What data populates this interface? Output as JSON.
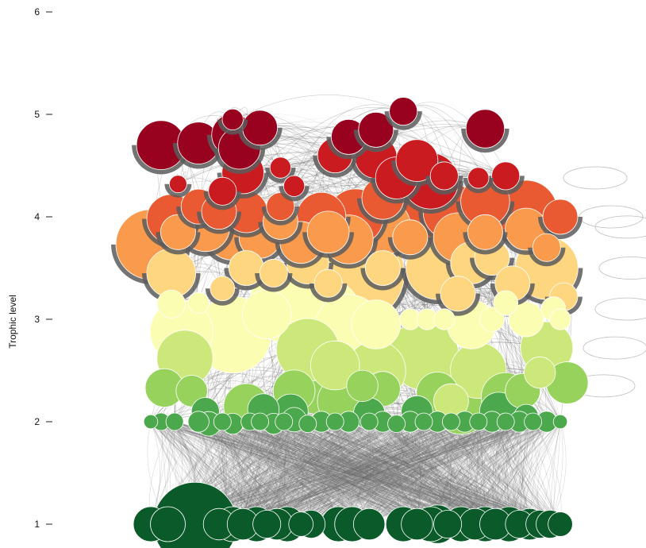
{
  "chart_data": {
    "type": "scatter",
    "title": "",
    "xlabel": "",
    "ylabel": "Trophic level",
    "ylim": [
      1,
      6
    ],
    "yticks": [
      1,
      2,
      3,
      4,
      5,
      6
    ],
    "grid": false,
    "legend": "none",
    "node_stroke": "#ffffff",
    "edge_color": "#6b6b6b",
    "palette": {
      "tl_1": "#0b5a2a",
      "tl_2_0": "#4ca84c",
      "tl_2_4": "#97d35c",
      "tl_2_7": "#cde87a",
      "tl_3_0": "#fbfdb2",
      "tl_3_5": "#fdd67f",
      "tl_3_8": "#f99a4c",
      "tl_4_0": "#ea5a32",
      "tl_4_3": "#ca1c20",
      "tl_4_7": "#98021f"
    },
    "series": [
      {
        "values": [
          {
            "x": 0.06,
            "y": 1.0,
            "s": 10
          },
          {
            "x": 0.11,
            "y": 1.0,
            "s": 10
          },
          {
            "x": 0.19,
            "y": 1.0,
            "s": 24
          },
          {
            "x": 0.26,
            "y": 1.0,
            "s": 9
          },
          {
            "x": 0.3,
            "y": 1.0,
            "s": 10
          },
          {
            "x": 0.33,
            "y": 1.0,
            "s": 9
          },
          {
            "x": 0.37,
            "y": 1.0,
            "s": 10
          },
          {
            "x": 0.4,
            "y": 1.0,
            "s": 8
          },
          {
            "x": 0.43,
            "y": 1.0,
            "s": 9
          },
          {
            "x": 0.46,
            "y": 1.0,
            "s": 10
          },
          {
            "x": 0.5,
            "y": 1.0,
            "s": 7
          },
          {
            "x": 0.53,
            "y": 1.0,
            "s": 8
          },
          {
            "x": 0.61,
            "y": 1.0,
            "s": 10
          },
          {
            "x": 0.65,
            "y": 1.0,
            "s": 10
          },
          {
            "x": 0.7,
            "y": 1.0,
            "s": 9
          },
          {
            "x": 0.8,
            "y": 1.0,
            "s": 10
          },
          {
            "x": 0.84,
            "y": 1.0,
            "s": 9
          },
          {
            "x": 0.88,
            "y": 1.0,
            "s": 10
          },
          {
            "x": 0.9,
            "y": 1.0,
            "s": 11
          },
          {
            "x": 0.93,
            "y": 1.0,
            "s": 8
          },
          {
            "x": 0.97,
            "y": 1.0,
            "s": 10
          },
          {
            "x": 1.01,
            "y": 1.0,
            "s": 9
          },
          {
            "x": 1.04,
            "y": 1.0,
            "s": 10
          },
          {
            "x": 1.07,
            "y": 1.0,
            "s": 9
          },
          {
            "x": 1.11,
            "y": 1.0,
            "s": 10
          },
          {
            "x": 1.14,
            "y": 1.0,
            "s": 8
          },
          {
            "x": 1.17,
            "y": 1.0,
            "s": 9
          },
          {
            "x": 1.2,
            "y": 1.0,
            "s": 8
          },
          {
            "x": 1.23,
            "y": 1.0,
            "s": 8
          },
          {
            "x": 1.26,
            "y": 1.0,
            "s": 7
          }
        ]
      },
      {
        "values": [
          {
            "x": 0.06,
            "y": 2.0,
            "s": 4
          },
          {
            "x": 0.09,
            "y": 2.0,
            "s": 5
          },
          {
            "x": 0.13,
            "y": 2.0,
            "s": 5
          },
          {
            "x": 0.2,
            "y": 2.0,
            "s": 6
          },
          {
            "x": 0.23,
            "y": 1.98,
            "s": 7
          },
          {
            "x": 0.27,
            "y": 2.0,
            "s": 5
          },
          {
            "x": 0.3,
            "y": 1.98,
            "s": 6
          },
          {
            "x": 0.35,
            "y": 2.0,
            "s": 5
          },
          {
            "x": 0.38,
            "y": 2.0,
            "s": 5
          },
          {
            "x": 0.42,
            "y": 1.98,
            "s": 6
          },
          {
            "x": 0.45,
            "y": 2.0,
            "s": 5
          },
          {
            "x": 0.48,
            "y": 2.02,
            "s": 7
          },
          {
            "x": 0.52,
            "y": 1.98,
            "s": 5
          },
          {
            "x": 0.56,
            "y": 2.0,
            "s": 6
          },
          {
            "x": 0.6,
            "y": 2.0,
            "s": 5
          },
          {
            "x": 0.64,
            "y": 2.0,
            "s": 6
          },
          {
            "x": 0.7,
            "y": 2.0,
            "s": 5
          },
          {
            "x": 0.74,
            "y": 2.0,
            "s": 6
          },
          {
            "x": 0.78,
            "y": 1.98,
            "s": 5
          },
          {
            "x": 0.82,
            "y": 2.0,
            "s": 6
          },
          {
            "x": 0.86,
            "y": 2.0,
            "s": 5
          },
          {
            "x": 0.9,
            "y": 2.0,
            "s": 6
          },
          {
            "x": 0.94,
            "y": 2.0,
            "s": 5
          },
          {
            "x": 0.98,
            "y": 2.0,
            "s": 6
          },
          {
            "x": 1.02,
            "y": 2.0,
            "s": 5
          },
          {
            "x": 1.06,
            "y": 2.0,
            "s": 6
          },
          {
            "x": 1.1,
            "y": 2.0,
            "s": 5
          },
          {
            "x": 1.14,
            "y": 2.0,
            "s": 6
          },
          {
            "x": 1.18,
            "y": 2.0,
            "s": 5
          },
          {
            "x": 1.22,
            "y": 2.0,
            "s": 6
          },
          {
            "x": 1.26,
            "y": 2.0,
            "s": 4
          },
          {
            "x": 0.22,
            "y": 2.1,
            "s": 8
          },
          {
            "x": 0.39,
            "y": 2.12,
            "s": 9
          },
          {
            "x": 0.47,
            "y": 2.1,
            "s": 10
          },
          {
            "x": 0.7,
            "y": 2.08,
            "s": 9
          },
          {
            "x": 0.84,
            "y": 2.1,
            "s": 9
          },
          {
            "x": 1.08,
            "y": 2.1,
            "s": 11
          },
          {
            "x": 1.16,
            "y": 2.05,
            "s": 7
          }
        ]
      },
      {
        "values": [
          {
            "x": 0.1,
            "y": 2.33,
            "s": 11
          },
          {
            "x": 0.18,
            "y": 2.3,
            "s": 9
          },
          {
            "x": 0.34,
            "y": 2.15,
            "s": 13
          },
          {
            "x": 0.48,
            "y": 2.3,
            "s": 12
          },
          {
            "x": 0.55,
            "y": 2.38,
            "s": 18
          },
          {
            "x": 0.62,
            "y": 2.2,
            "s": 14
          },
          {
            "x": 0.68,
            "y": 2.35,
            "s": 9
          },
          {
            "x": 0.74,
            "y": 2.32,
            "s": 10
          },
          {
            "x": 0.9,
            "y": 2.28,
            "s": 12
          },
          {
            "x": 0.97,
            "y": 2.15,
            "s": 16
          },
          {
            "x": 1.1,
            "y": 2.24,
            "s": 14
          },
          {
            "x": 1.15,
            "y": 2.3,
            "s": 10
          },
          {
            "x": 1.28,
            "y": 2.38,
            "s": 12
          }
        ]
      },
      {
        "values": [
          {
            "x": 0.16,
            "y": 2.62,
            "s": 16
          },
          {
            "x": 0.52,
            "y": 2.7,
            "s": 18
          },
          {
            "x": 0.6,
            "y": 2.55,
            "s": 14
          },
          {
            "x": 0.72,
            "y": 2.5,
            "s": 17
          },
          {
            "x": 0.86,
            "y": 2.65,
            "s": 20
          },
          {
            "x": 0.94,
            "y": 2.2,
            "s": 10
          },
          {
            "x": 1.02,
            "y": 2.5,
            "s": 16
          },
          {
            "x": 1.22,
            "y": 2.72,
            "s": 15
          },
          {
            "x": 1.2,
            "y": 2.48,
            "s": 9
          }
        ]
      },
      {
        "values": [
          {
            "x": 0.12,
            "y": 3.15,
            "s": 8
          },
          {
            "x": 0.2,
            "y": 3.16,
            "s": 6
          },
          {
            "x": 0.15,
            "y": 2.88,
            "s": 18
          },
          {
            "x": 0.3,
            "y": 2.85,
            "s": 22
          },
          {
            "x": 0.4,
            "y": 3.05,
            "s": 14
          },
          {
            "x": 0.46,
            "y": 3.14,
            "s": 22
          },
          {
            "x": 0.56,
            "y": 3.0,
            "s": 24
          },
          {
            "x": 0.64,
            "y": 2.9,
            "s": 20
          },
          {
            "x": 0.72,
            "y": 2.95,
            "s": 14
          },
          {
            "x": 0.82,
            "y": 3.0,
            "s": 6
          },
          {
            "x": 0.87,
            "y": 3.0,
            "s": 6
          },
          {
            "x": 0.92,
            "y": 3.0,
            "s": 6
          },
          {
            "x": 1.0,
            "y": 2.95,
            "s": 14
          },
          {
            "x": 1.06,
            "y": 3.0,
            "s": 7
          },
          {
            "x": 1.16,
            "y": 3.0,
            "s": 10
          },
          {
            "x": 1.26,
            "y": 3.0,
            "s": 6
          },
          {
            "x": 1.24,
            "y": 3.1,
            "s": 7
          },
          {
            "x": 1.1,
            "y": 3.16,
            "s": 7
          }
        ]
      },
      {
        "values": [
          {
            "x": 0.12,
            "y": 3.45,
            "s": 14
          },
          {
            "x": 0.27,
            "y": 3.3,
            "s": 7
          },
          {
            "x": 0.34,
            "y": 3.5,
            "s": 10
          },
          {
            "x": 0.42,
            "y": 3.45,
            "s": 8
          },
          {
            "x": 0.52,
            "y": 3.55,
            "s": 12
          },
          {
            "x": 0.58,
            "y": 3.35,
            "s": 8
          },
          {
            "x": 0.66,
            "y": 3.45,
            "s": 28
          },
          {
            "x": 0.74,
            "y": 3.5,
            "s": 10
          },
          {
            "x": 0.9,
            "y": 3.5,
            "s": 18
          },
          {
            "x": 0.96,
            "y": 3.25,
            "s": 10
          },
          {
            "x": 1.0,
            "y": 3.55,
            "s": 12
          },
          {
            "x": 1.06,
            "y": 3.6,
            "s": 10
          },
          {
            "x": 1.12,
            "y": 3.35,
            "s": 10
          },
          {
            "x": 1.22,
            "y": 3.5,
            "s": 18
          },
          {
            "x": 1.27,
            "y": 3.22,
            "s": 8
          }
        ]
      },
      {
        "values": [
          {
            "x": 0.06,
            "y": 3.73,
            "s": 20
          },
          {
            "x": 0.14,
            "y": 3.85,
            "s": 10
          },
          {
            "x": 0.22,
            "y": 3.9,
            "s": 14
          },
          {
            "x": 0.3,
            "y": 3.85,
            "s": 16
          },
          {
            "x": 0.38,
            "y": 3.8,
            "s": 12
          },
          {
            "x": 0.44,
            "y": 3.95,
            "s": 10
          },
          {
            "x": 0.5,
            "y": 3.75,
            "s": 12
          },
          {
            "x": 0.58,
            "y": 3.85,
            "s": 12
          },
          {
            "x": 0.64,
            "y": 3.78,
            "s": 14
          },
          {
            "x": 0.74,
            "y": 3.9,
            "s": 16
          },
          {
            "x": 0.82,
            "y": 3.8,
            "s": 10
          },
          {
            "x": 0.96,
            "y": 3.8,
            "s": 14
          },
          {
            "x": 1.04,
            "y": 3.85,
            "s": 10
          },
          {
            "x": 1.16,
            "y": 3.88,
            "s": 12
          },
          {
            "x": 1.22,
            "y": 3.7,
            "s": 8
          }
        ]
      },
      {
        "values": [
          {
            "x": 0.12,
            "y": 3.98,
            "s": 14
          },
          {
            "x": 0.2,
            "y": 4.1,
            "s": 10
          },
          {
            "x": 0.26,
            "y": 4.05,
            "s": 10
          },
          {
            "x": 0.34,
            "y": 4.05,
            "s": 12
          },
          {
            "x": 0.44,
            "y": 4.1,
            "s": 8
          },
          {
            "x": 0.56,
            "y": 4.0,
            "s": 14
          },
          {
            "x": 0.66,
            "y": 4.0,
            "s": 16
          },
          {
            "x": 0.74,
            "y": 4.18,
            "s": 12
          },
          {
            "x": 0.84,
            "y": 4.05,
            "s": 20
          },
          {
            "x": 0.94,
            "y": 4.05,
            "s": 16
          },
          {
            "x": 1.04,
            "y": 4.15,
            "s": 14
          },
          {
            "x": 1.16,
            "y": 4.05,
            "s": 18
          },
          {
            "x": 1.26,
            "y": 4.0,
            "s": 10
          }
        ]
      },
      {
        "values": [
          {
            "x": 0.14,
            "y": 4.32,
            "s": 5
          },
          {
            "x": 0.27,
            "y": 4.25,
            "s": 8
          },
          {
            "x": 0.33,
            "y": 4.43,
            "s": 12
          },
          {
            "x": 0.44,
            "y": 4.48,
            "s": 6
          },
          {
            "x": 0.48,
            "y": 4.3,
            "s": 6
          },
          {
            "x": 0.6,
            "y": 4.6,
            "s": 10
          },
          {
            "x": 0.72,
            "y": 4.58,
            "s": 12
          },
          {
            "x": 0.78,
            "y": 4.38,
            "s": 12
          },
          {
            "x": 0.84,
            "y": 4.55,
            "s": 12
          },
          {
            "x": 0.88,
            "y": 4.35,
            "s": 16
          },
          {
            "x": 0.92,
            "y": 4.4,
            "s": 8
          },
          {
            "x": 1.02,
            "y": 4.38,
            "s": 6
          },
          {
            "x": 1.1,
            "y": 4.4,
            "s": 8
          }
        ]
      },
      {
        "values": [
          {
            "x": 0.09,
            "y": 4.7,
            "s": 14
          },
          {
            "x": 0.2,
            "y": 4.72,
            "s": 12
          },
          {
            "x": 0.3,
            "y": 4.8,
            "s": 12
          },
          {
            "x": 0.32,
            "y": 4.67,
            "s": 12
          },
          {
            "x": 0.3,
            "y": 4.95,
            "s": 6
          },
          {
            "x": 0.38,
            "y": 4.87,
            "s": 10
          },
          {
            "x": 0.64,
            "y": 4.78,
            "s": 10
          },
          {
            "x": 0.72,
            "y": 4.85,
            "s": 10
          },
          {
            "x": 0.8,
            "y": 5.03,
            "s": 8
          },
          {
            "x": 1.04,
            "y": 4.86,
            "s": 11
          }
        ]
      }
    ]
  }
}
